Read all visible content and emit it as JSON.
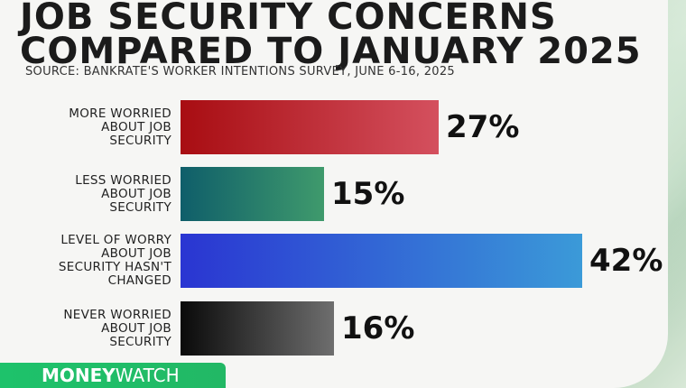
{
  "title_line1": "JOB SECURITY CONCERNS",
  "title_line2": "COMPARED TO JANUARY 2025",
  "source": "SOURCE: BANKRATE'S WORKER INTENTIONS SURVEY, JUNE 6-16, 2025",
  "brand": {
    "bold": "MONEY",
    "light": "WATCH"
  },
  "chart_data": {
    "type": "bar",
    "orientation": "horizontal",
    "categories": [
      "MORE WORRIED ABOUT JOB SECURITY",
      "LESS WORRIED ABOUT JOB SECURITY",
      "LEVEL OF WORRY ABOUT JOB SECURITY HASN'T CHANGED",
      "NEVER WORRIED ABOUT JOB SECURITY"
    ],
    "category_lines": [
      [
        "MORE WORRIED",
        "ABOUT JOB",
        "SECURITY"
      ],
      [
        "LESS WORRIED",
        "ABOUT JOB",
        "SECURITY"
      ],
      [
        "LEVEL OF WORRY",
        "ABOUT JOB",
        "SECURITY HASN'T",
        "CHANGED"
      ],
      [
        "NEVER WORRIED",
        "ABOUT JOB",
        "SECURITY"
      ]
    ],
    "values": [
      27,
      15,
      42,
      16
    ],
    "value_labels": [
      "27%",
      "15%",
      "42%",
      "16%"
    ],
    "colors": [
      [
        "#a80d12",
        "#d4505e"
      ],
      [
        "#0f5e6a",
        "#3f9a6c"
      ],
      [
        "#2a35d2",
        "#3b9ad8"
      ],
      [
        "#0a0a0a",
        "#6e6e6e"
      ]
    ],
    "xlim": [
      0,
      42
    ],
    "grid": false,
    "legend": "none"
  }
}
